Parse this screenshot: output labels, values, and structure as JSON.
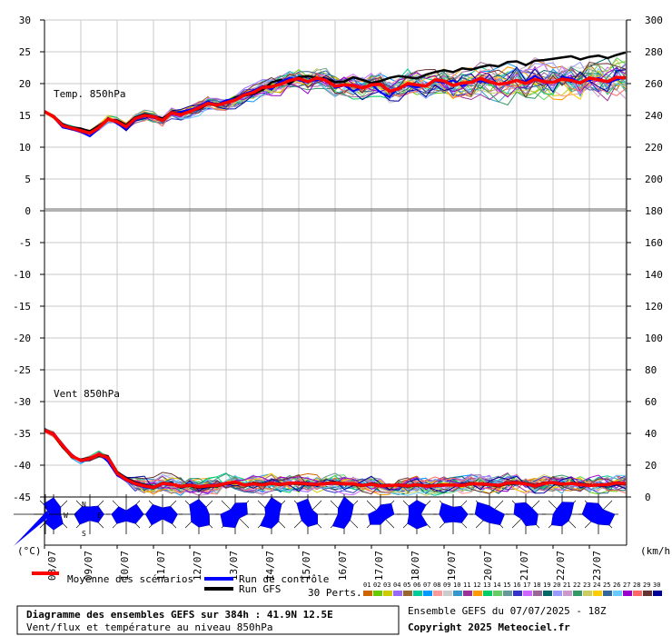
{
  "chart_data": {
    "type": "line",
    "title": "Diagramme des ensembles GEFS sur 384h : 41.9N 12.5E",
    "subtitle": "Vent/flux et température au niveau 850hPa",
    "left_unit": "(°C)",
    "right_unit": "(km/h)",
    "temp_panel_label": "Temp. 850hPa",
    "wind_panel_label": "Vent 850hPa",
    "x_dates": [
      "08/07",
      "09/07",
      "10/07",
      "11/07",
      "12/07",
      "13/07",
      "14/07",
      "15/07",
      "16/07",
      "17/07",
      "18/07",
      "19/07",
      "20/07",
      "21/07",
      "22/07",
      "23/07"
    ],
    "x_range_days": [
      0,
      16
    ],
    "left_ticks": [
      30,
      25,
      20,
      15,
      10,
      5,
      0,
      -5,
      -10,
      -15,
      -20,
      -25,
      -30,
      -35,
      -40,
      -45
    ],
    "right_ticks": [
      300,
      280,
      260,
      240,
      220,
      200,
      180,
      160,
      140,
      120,
      100,
      80,
      60,
      40,
      20,
      0
    ],
    "ylim_temp_c": [
      0,
      30
    ],
    "ylim_wind_kmh": [
      0,
      60
    ],
    "temp_mean": [
      15.6,
      14.8,
      13.4,
      13.0,
      12.6,
      12.2,
      13.1,
      14.4,
      14.0,
      13.2,
      14.5,
      15.0,
      14.8,
      14.2,
      15.4,
      15.1,
      15.6,
      16.2,
      16.9,
      16.6,
      17.0,
      17.4,
      18.2,
      18.6,
      19.4,
      19.5,
      19.9,
      20.5,
      20.8,
      20.3,
      20.9,
      20.5,
      19.6,
      19.8,
      19.7,
      19.3,
      19.8,
      19.9,
      18.8,
      19.2,
      20.0,
      19.8,
      19.6,
      20.6,
      20.4,
      19.7,
      20.1,
      20.2,
      20.8,
      20.3,
      19.9,
      20.1,
      20.5,
      20.0,
      20.7,
      20.3,
      20.2,
      20.7,
      20.5,
      20.1,
      20.9,
      20.6,
      20.3,
      21.0,
      20.9
    ],
    "temp_control": [
      15.6,
      14.7,
      13.1,
      12.8,
      12.4,
      11.7,
      12.9,
      14.6,
      13.7,
      12.8,
      14.3,
      14.9,
      14.6,
      14.3,
      15.2,
      15.6,
      15.9,
      16.4,
      17.2,
      16.7,
      17.4,
      17.6,
      18.4,
      18.9,
      19.6,
      19.1,
      20.3,
      20.9,
      20.5,
      20.2,
      20.6,
      20.8,
      19.3,
      19.7,
      18.8,
      19.4,
      19.9,
      18.6,
      17.9,
      19.4,
      19.8,
      19.4,
      19.7,
      20.4,
      20.1,
      20.5,
      19.6,
      20.3,
      20.4,
      20.1,
      20.0,
      19.9,
      20.6,
      20.3,
      21.2,
      20.4,
      20.1,
      21.0,
      20.8,
      20.2,
      20.5,
      20.9,
      20.1,
      20.6,
      21.0
    ],
    "temp_gfs": [
      15.6,
      14.9,
      13.6,
      13.1,
      12.9,
      12.5,
      13.3,
      14.3,
      14.2,
      13.5,
      14.7,
      15.2,
      14.9,
      14.5,
      15.5,
      15.3,
      15.7,
      16.0,
      16.8,
      16.5,
      17.1,
      17.8,
      18.1,
      18.4,
      19.0,
      20.2,
      20.6,
      20.0,
      21.0,
      21.2,
      20.9,
      20.8,
      20.2,
      20.3,
      21.0,
      20.6,
      20.1,
      20.4,
      20.9,
      21.2,
      21.0,
      20.8,
      21.4,
      21.8,
      22.1,
      21.8,
      22.4,
      22.2,
      22.6,
      22.9,
      22.7,
      23.4,
      23.5,
      22.9,
      23.6,
      23.7,
      23.9,
      24.1,
      24.3,
      23.8,
      24.2,
      24.4,
      24.0,
      24.5,
      24.9
    ],
    "wind_mean": [
      42.0,
      39.5,
      32.3,
      25.8,
      23.0,
      24.1,
      26.8,
      24.6,
      14.9,
      11.0,
      8.4,
      7.0,
      6.0,
      8.5,
      8.0,
      6.7,
      7.5,
      6.4,
      7.0,
      7.3,
      8.6,
      9.4,
      7.5,
      8.3,
      7.6,
      8.6,
      7.9,
      8.8,
      8.7,
      8.3,
      7.9,
      8.5,
      8.8,
      8.2,
      8.3,
      7.3,
      8.0,
      6.9,
      7.2,
      7.6,
      7.0,
      7.8,
      6.8,
      7.1,
      7.5,
      7.6,
      7.3,
      8.4,
      8.2,
      7.9,
      7.3,
      8.8,
      8.9,
      8.2,
      7.0,
      8.5,
      9.1,
      8.1,
      8.5,
      7.8,
      7.2,
      7.6,
      7.8,
      8.9,
      8.4
    ],
    "wind_control": [
      42.0,
      40.3,
      33.1,
      26.0,
      22.4,
      23.6,
      27.4,
      22.1,
      13.6,
      10.2,
      7.6,
      6.2,
      5.4,
      7.9,
      7.4,
      6.8,
      8.1,
      6.9,
      7.7,
      7.9,
      8.8,
      9.7,
      7.1,
      8.0,
      7.3,
      8.9,
      8.2,
      9.1,
      9.3,
      8.9,
      8.4,
      8.0,
      8.2,
      7.7,
      8.7,
      7.8,
      7.9,
      6.4,
      6.8,
      8.1,
      7.4,
      8.3,
      6.6,
      6.5,
      7.1,
      8.0,
      6.9,
      8.2,
      8.7,
      8.4,
      7.7,
      9.3,
      9.4,
      7.6,
      6.5,
      7.9,
      9.6,
      8.6,
      8.1,
      7.3,
      6.7,
      8.0,
      8.3,
      9.3,
      8.9
    ],
    "wind_gfs": [
      42.0,
      39.1,
      31.5,
      25.2,
      23.5,
      24.7,
      26.1,
      25.4,
      15.7,
      11.8,
      9.2,
      7.6,
      6.5,
      8.9,
      8.5,
      6.1,
      7.0,
      5.8,
      6.4,
      6.7,
      8.2,
      8.9,
      7.8,
      8.8,
      8.2,
      8.2,
      7.5,
      8.4,
      8.2,
      7.8,
      7.5,
      8.9,
      9.3,
      8.6,
      7.8,
      6.9,
      8.6,
      7.4,
      7.7,
      7.1,
      6.5,
      7.4,
      7.3,
      7.6,
      7.9,
      7.3,
      7.7,
      8.9,
      7.8,
      7.4,
      6.8,
      8.3,
      8.4,
      8.7,
      7.5,
      9.0,
      8.6,
      7.6,
      8.9,
      8.3,
      7.7,
      7.2,
      7.4,
      8.5,
      7.9
    ],
    "series": [
      {
        "name": "Moyenne des scénarios",
        "color": "#ff0000"
      },
      {
        "name": "Run de contrôle",
        "color": "#0000ff"
      },
      {
        "name": "Run GFS",
        "color": "#000000"
      }
    ],
    "perturbations_label": "30 Perts.",
    "perturbation_ids": [
      "01",
      "02",
      "03",
      "04",
      "05",
      "06",
      "07",
      "08",
      "09",
      "10",
      "11",
      "12",
      "13",
      "14",
      "15",
      "16",
      "17",
      "18",
      "19",
      "20",
      "21",
      "22",
      "23",
      "24",
      "25",
      "26",
      "27",
      "28",
      "29",
      "30"
    ],
    "perturbation_colors": [
      "#cc6600",
      "#66cc00",
      "#cccc00",
      "#9966ff",
      "#996633",
      "#00cc99",
      "#0099ff",
      "#ff9999",
      "#cccccc",
      "#3399cc",
      "#993399",
      "#ff9900",
      "#00cc66",
      "#66cc66",
      "#669999",
      "#3333cc",
      "#cc66ff",
      "#996699",
      "#006666",
      "#9999ff",
      "#cc99cc",
      "#339966",
      "#cccc66",
      "#ffcc00",
      "#336699",
      "#66ccff",
      "#9900cc",
      "#ff6666",
      "#663333",
      "#000099"
    ],
    "compass": [
      "N",
      "E",
      "S",
      "W"
    ],
    "grid": true,
    "legend_position": "bottom",
    "run_info": "Ensemble GEFS du 07/07/2025 - 18Z",
    "copyright": "Copyright 2025 Meteociel.fr"
  }
}
